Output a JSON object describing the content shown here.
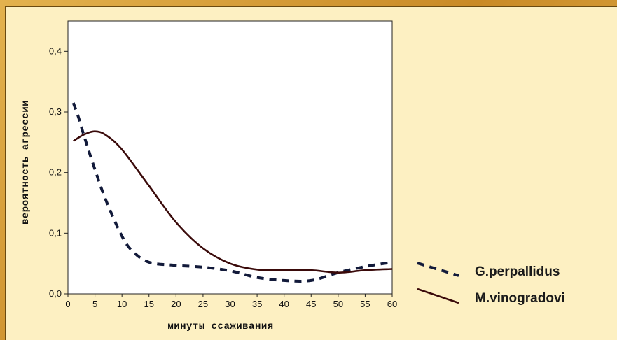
{
  "chart_data": {
    "type": "line",
    "xlabel": "минуты ссаживания",
    "ylabel": "вероятность агрессии",
    "xlim": [
      0,
      60
    ],
    "ylim": [
      0,
      0.45
    ],
    "xticks": [
      0,
      5,
      10,
      15,
      20,
      25,
      30,
      35,
      40,
      45,
      50,
      55,
      60
    ],
    "yticks": [
      "0,0",
      "0,1",
      "0,2",
      "0,3",
      "0,4"
    ],
    "ytick_values": [
      0.0,
      0.1,
      0.2,
      0.3,
      0.4
    ],
    "grid": false,
    "legend_position": "bottom-right outside",
    "series": [
      {
        "name": "G.perpallidus",
        "style": "dashed",
        "color": "#121a3a",
        "x": [
          1,
          2,
          3,
          5,
          7,
          10,
          12,
          15,
          20,
          25,
          30,
          35,
          40,
          45,
          50,
          55,
          60
        ],
        "y": [
          0.315,
          0.29,
          0.26,
          0.205,
          0.155,
          0.095,
          0.07,
          0.052,
          0.047,
          0.044,
          0.038,
          0.027,
          0.022,
          0.022,
          0.035,
          0.045,
          0.052
        ]
      },
      {
        "name": "M.vinogradovi",
        "style": "solid",
        "color": "#3a0a0a",
        "x": [
          1,
          3,
          5,
          7,
          10,
          15,
          20,
          25,
          30,
          35,
          40,
          45,
          50,
          55,
          60
        ],
        "y": [
          0.252,
          0.263,
          0.268,
          0.262,
          0.238,
          0.178,
          0.118,
          0.075,
          0.05,
          0.04,
          0.039,
          0.039,
          0.035,
          0.039,
          0.041
        ]
      }
    ]
  }
}
